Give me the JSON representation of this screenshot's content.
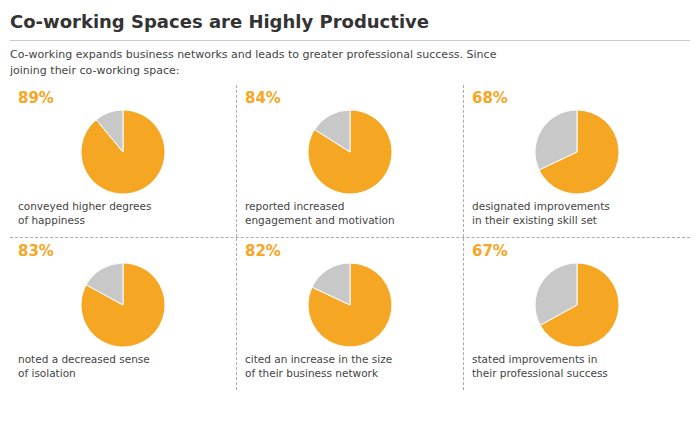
{
  "title": "Co-working Spaces are Highly Productive",
  "subtitle": "Co-working expands business networks and leads to greater professional success. Since\njoining their co-working space:",
  "chart_data": [
    {
      "type": "pie",
      "title": "89%",
      "values": [
        89,
        11
      ],
      "colors": [
        "#f5a623",
        "#c8c8c8"
      ],
      "annotations": [
        "conveyed higher degrees\nof happiness"
      ]
    },
    {
      "type": "pie",
      "title": "84%",
      "values": [
        84,
        16
      ],
      "colors": [
        "#f5a623",
        "#c8c8c8"
      ],
      "annotations": [
        "reported increased\nengagement and motivation"
      ]
    },
    {
      "type": "pie",
      "title": "68%",
      "values": [
        68,
        32
      ],
      "colors": [
        "#f5a623",
        "#c8c8c8"
      ],
      "annotations": [
        "designated improvements\nin their existing skill set"
      ]
    },
    {
      "type": "pie",
      "title": "83%",
      "values": [
        83,
        17
      ],
      "colors": [
        "#f5a623",
        "#c8c8c8"
      ],
      "annotations": [
        "noted a decreased sense\nof isolation"
      ]
    },
    {
      "type": "pie",
      "title": "82%",
      "values": [
        82,
        18
      ],
      "colors": [
        "#f5a623",
        "#c8c8c8"
      ],
      "annotations": [
        "cited an increase in the size\nof their business network"
      ]
    },
    {
      "type": "pie",
      "title": "67%",
      "values": [
        67,
        33
      ],
      "colors": [
        "#f5a623",
        "#c8c8c8"
      ],
      "annotations": [
        "stated improvements in\ntheir professional success"
      ]
    }
  ]
}
